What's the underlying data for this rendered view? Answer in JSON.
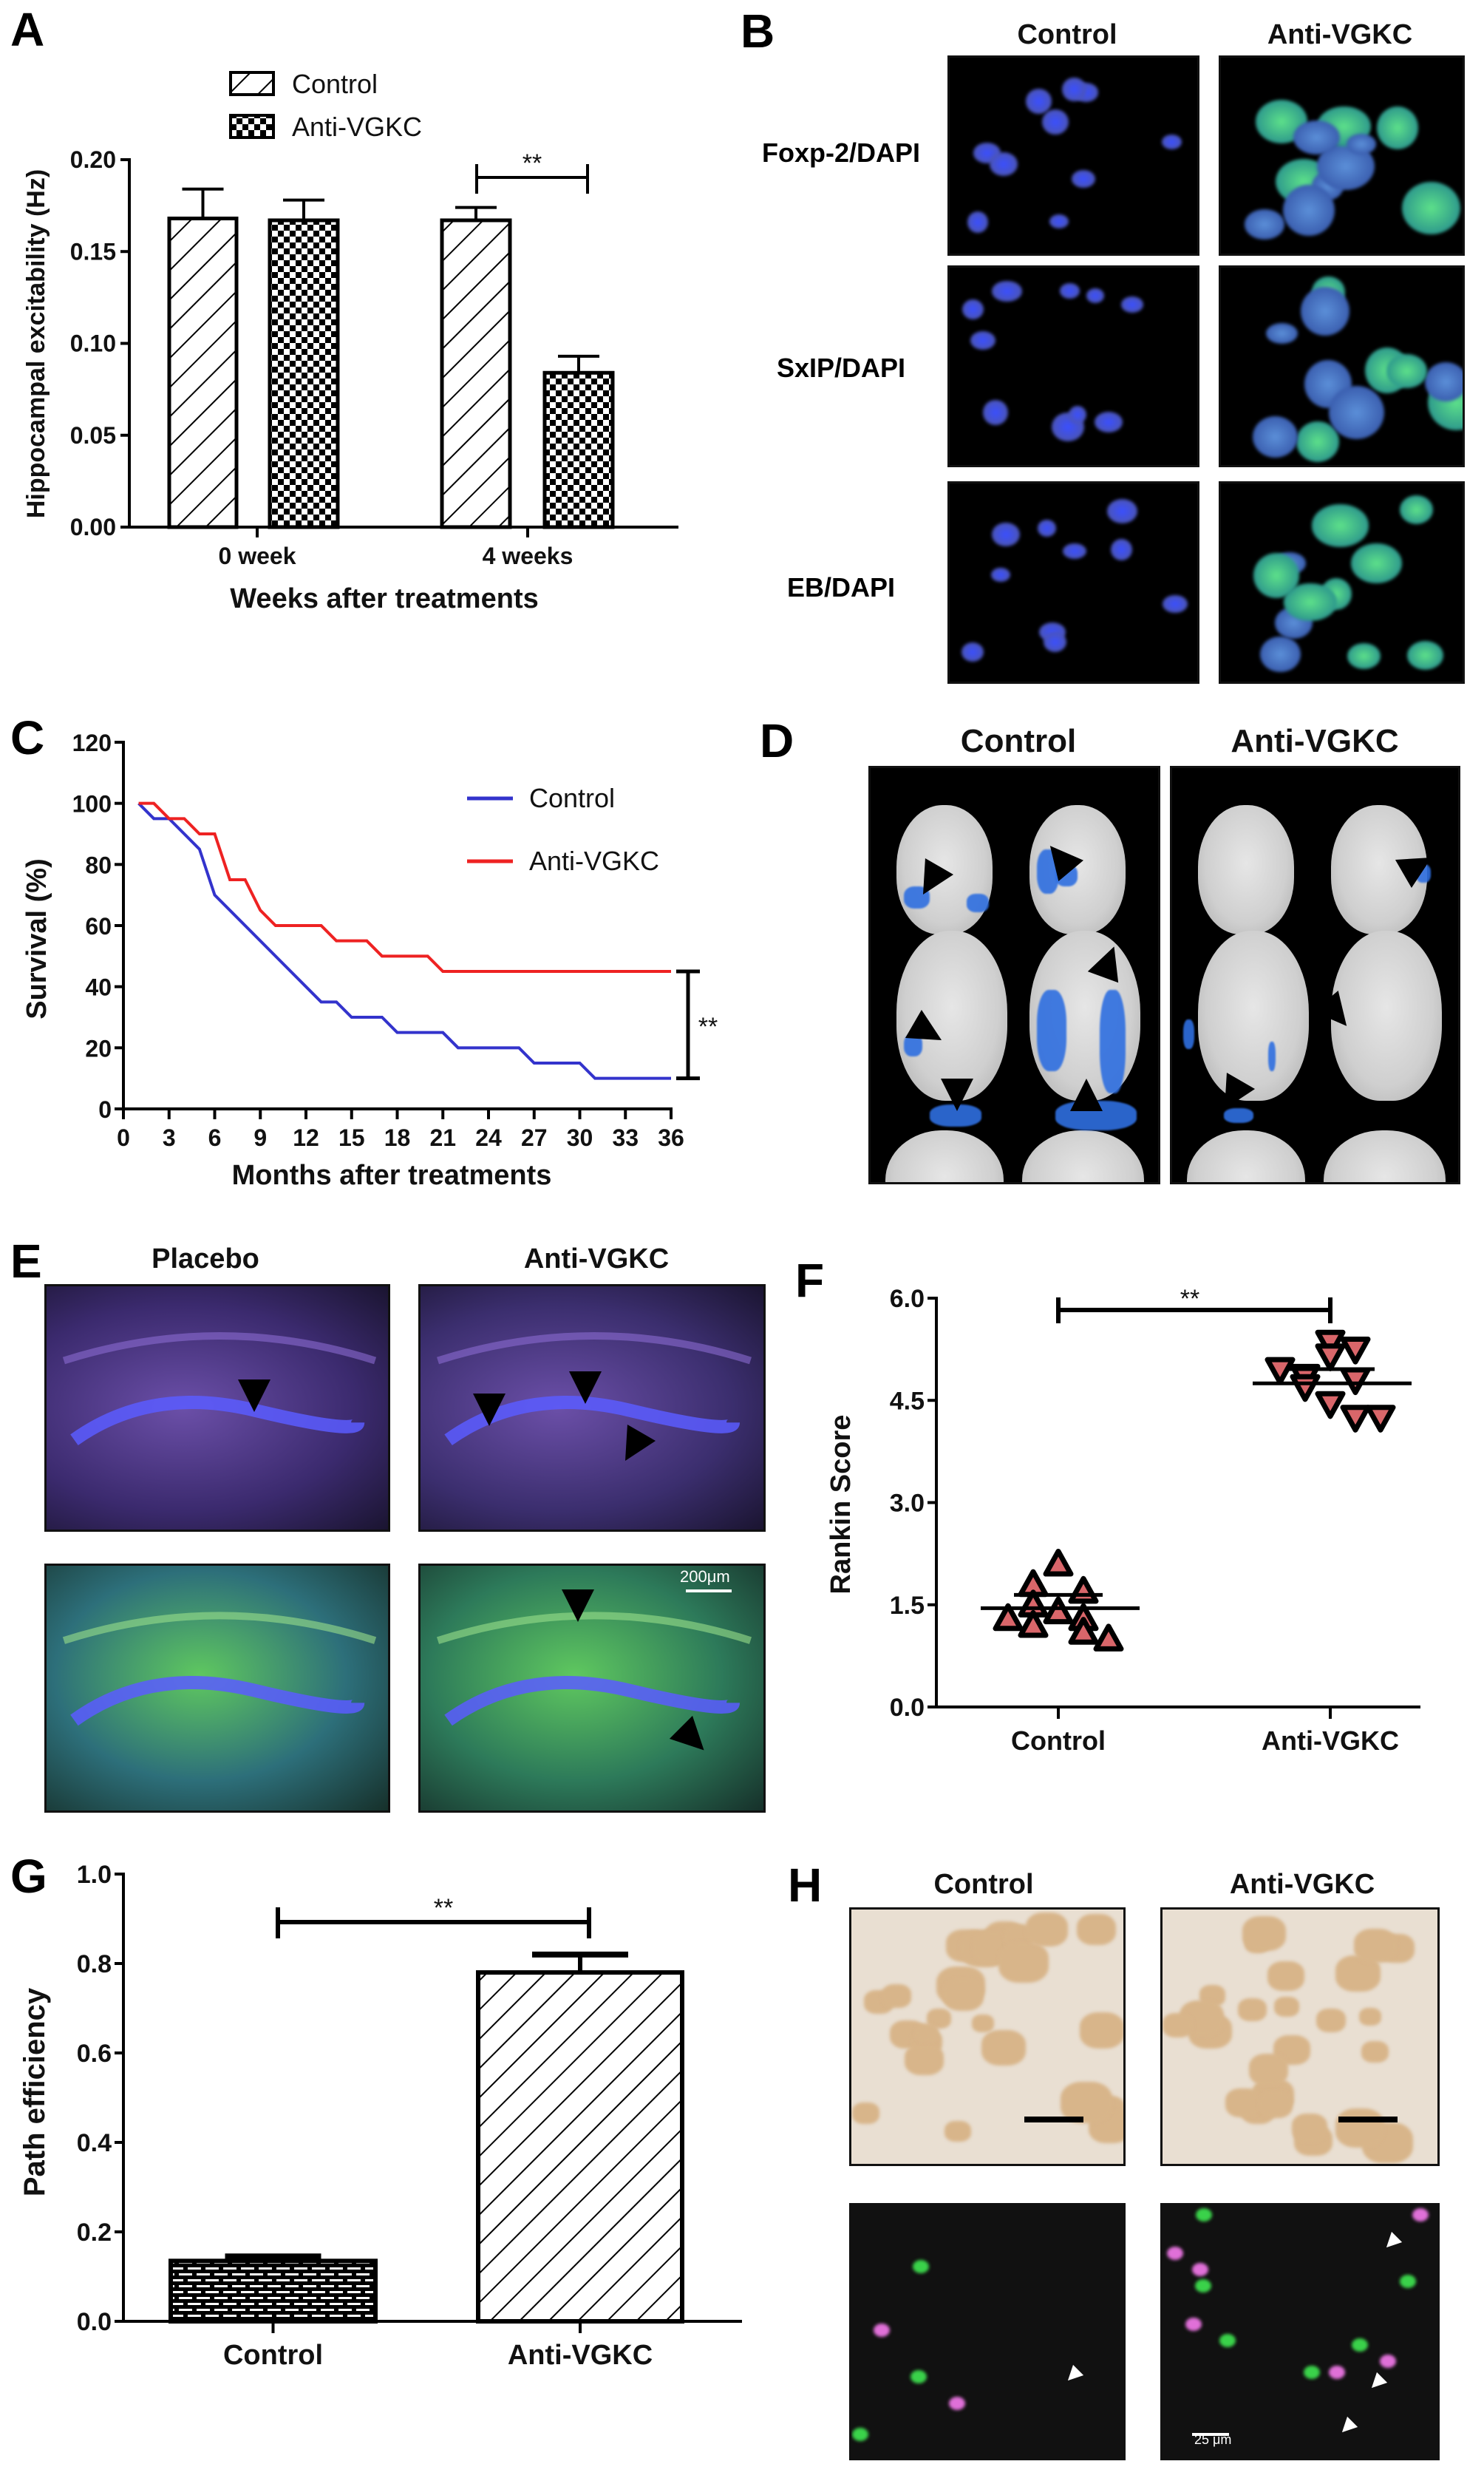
{
  "panel_labels": {
    "a": "A",
    "b": "B",
    "c": "C",
    "d": "D",
    "e": "E",
    "f": "F",
    "g": "G",
    "h": "H"
  },
  "panel_b": {
    "columns": [
      "Control",
      "Anti-VGKC"
    ],
    "rows": [
      "Foxp-2/DAPI",
      "SxIP/DAPI",
      "EB/DAPI"
    ]
  },
  "panel_d": {
    "columns": [
      "Control",
      "Anti-VGKC"
    ]
  },
  "panel_e": {
    "columns": [
      "Placebo",
      "Anti-VGKC"
    ],
    "scale_bar": "200μm"
  },
  "panel_h": {
    "columns": [
      "Control",
      "Anti-VGKC"
    ],
    "scale_bar": "25 μm"
  },
  "colors": {
    "control_line": "#3333cc",
    "anti_line": "#ee2222",
    "triangle_fill": "#d9666a"
  },
  "chart_data": [
    {
      "id": "A",
      "type": "bar",
      "title": "",
      "categories": [
        "0 week",
        "4 weeks"
      ],
      "series": [
        {
          "name": "Control",
          "pattern": "diagonal-hatch",
          "values": [
            0.168,
            0.167
          ],
          "errors": [
            0.016,
            0.007
          ]
        },
        {
          "name": "Anti-VGKC",
          "pattern": "checkerboard",
          "values": [
            0.167,
            0.084
          ],
          "errors": [
            0.011,
            0.009
          ]
        }
      ],
      "xlabel": "Weeks after treatments",
      "ylabel": "Hippocampal excitability (Hz)",
      "ylim": [
        0,
        0.2
      ],
      "yticks": [
        "0.00",
        "0.05",
        "0.10",
        "0.15",
        "0.20"
      ],
      "yticks_values": [
        0,
        0.05,
        0.1,
        0.15,
        0.2
      ],
      "legend": "top-center",
      "annotations": [
        {
          "text": "**",
          "between": [
            "4 weeks Control",
            "4 weeks Anti-VGKC"
          ]
        }
      ]
    },
    {
      "id": "C",
      "type": "line",
      "subtype": "step-survival",
      "series": [
        {
          "name": "Control",
          "x": [
            1,
            2,
            3,
            5,
            6,
            13,
            14,
            15,
            17,
            18,
            21,
            22,
            26,
            27,
            30,
            31,
            36
          ],
          "y": [
            100,
            95,
            95,
            85,
            70,
            35,
            35,
            30,
            30,
            25,
            25,
            20,
            20,
            15,
            15,
            10,
            10
          ]
        },
        {
          "name": "Anti-VGKC",
          "x": [
            1,
            2,
            3,
            4,
            5,
            6,
            7,
            8,
            9,
            10,
            13,
            14,
            16,
            17,
            20,
            21,
            36
          ],
          "y": [
            100,
            100,
            95,
            95,
            90,
            90,
            75,
            75,
            65,
            60,
            60,
            55,
            55,
            50,
            50,
            45,
            45
          ]
        }
      ],
      "xlabel": "Months after treatments",
      "ylabel": "Survival (%)",
      "xlim": [
        0,
        36
      ],
      "ylim": [
        0,
        120
      ],
      "xticks": [
        "0",
        "3",
        "6",
        "9",
        "12",
        "15",
        "18",
        "21",
        "24",
        "27",
        "30",
        "33",
        "36"
      ],
      "yticks": [
        "0",
        "20",
        "40",
        "60",
        "80",
        "100",
        "120"
      ],
      "legend": "top-right",
      "annotations": [
        {
          "text": "**",
          "between": [
            "Anti-VGKC at 36",
            "Control at 36"
          ]
        }
      ]
    },
    {
      "id": "F",
      "type": "scatter",
      "categories": [
        "Control",
        "Anti-VGKC"
      ],
      "series": [
        {
          "name": "Control",
          "marker": "triangle-up",
          "values": [
            2.1,
            1.8,
            1.7,
            1.5,
            1.4,
            1.3,
            1.3,
            1.2,
            1.1,
            1.0
          ],
          "mean": 1.45
        },
        {
          "name": "Anti-VGKC",
          "marker": "triangle-down",
          "values": [
            5.35,
            5.25,
            5.15,
            4.95,
            4.85,
            4.8,
            4.7,
            4.45,
            4.25,
            4.25
          ],
          "mean": 4.75
        }
      ],
      "ylabel": "Rankin Score",
      "ylim": [
        0,
        6
      ],
      "yticks": [
        "0.0",
        "1.5",
        "3.0",
        "4.5",
        "6.0"
      ],
      "yticks_values": [
        0,
        1.5,
        3,
        4.5,
        6
      ],
      "annotations": [
        {
          "text": "**",
          "between": [
            "Control",
            "Anti-VGKC"
          ]
        }
      ]
    },
    {
      "id": "G",
      "type": "bar",
      "categories": [
        "Control",
        "Anti-VGKC"
      ],
      "values": [
        0.135,
        0.78
      ],
      "errors": [
        0.01,
        0.04
      ],
      "patterns": [
        "brick",
        "diagonal-hatch"
      ],
      "ylabel": "Path efficiency",
      "ylim": [
        0,
        1
      ],
      "yticks": [
        "0.0",
        "0.2",
        "0.4",
        "0.6",
        "0.8",
        "1.0"
      ],
      "yticks_values": [
        0,
        0.2,
        0.4,
        0.6,
        0.8,
        1.0
      ],
      "annotations": [
        {
          "text": "**",
          "between": [
            "Control",
            "Anti-VGKC"
          ]
        }
      ]
    }
  ]
}
